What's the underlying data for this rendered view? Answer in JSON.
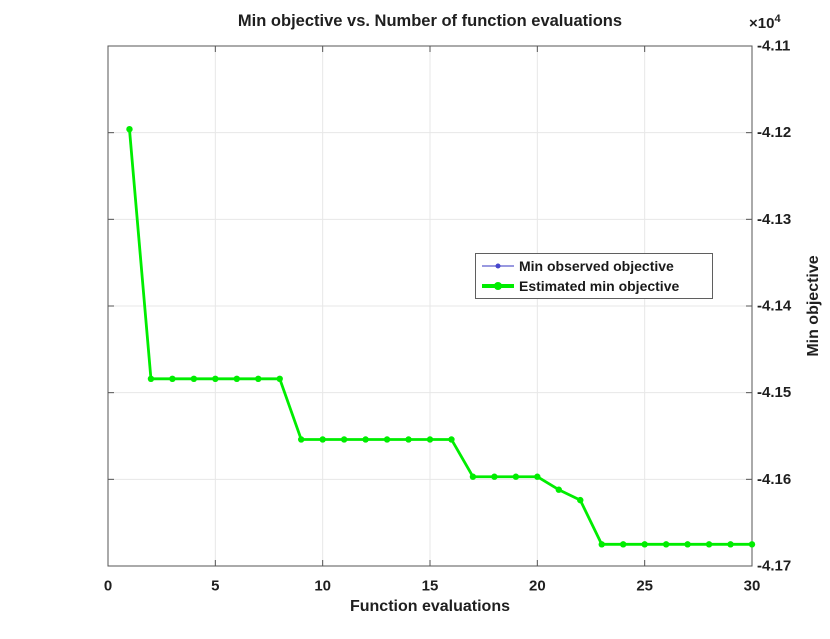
{
  "window": {
    "background_color": "#ffffff"
  },
  "chart_data": {
    "type": "line",
    "title": "Min objective vs. Number of function evaluations",
    "xlabel": "Function evaluations",
    "ylabel": "Min objective",
    "y_exponent": {
      "base": "×10",
      "power": "4"
    },
    "y_unit_scale": 10000,
    "xlim": [
      0,
      30
    ],
    "ylim_e4": [
      -4.17,
      -4.11
    ],
    "xticks": [
      0,
      5,
      10,
      15,
      20,
      25,
      30
    ],
    "yticks_e4": [
      -4.11,
      -4.12,
      -4.13,
      -4.14,
      -4.15,
      -4.16,
      -4.17
    ],
    "ytick_labels": [
      "-4.11",
      "-4.12",
      "-4.13",
      "-4.14",
      "-4.15",
      "-4.16",
      "-4.17"
    ],
    "grid": true,
    "y_axis_location": "right",
    "legend_position": "right-center",
    "x": [
      1,
      2,
      3,
      4,
      5,
      6,
      7,
      8,
      9,
      10,
      11,
      12,
      13,
      14,
      15,
      16,
      17,
      18,
      19,
      20,
      21,
      22,
      23,
      24,
      25,
      26,
      27,
      28,
      29,
      30
    ],
    "series": [
      {
        "name": "Min observed objective",
        "color": "#9999e0",
        "marker_color": "#4646cc",
        "line_width": 1.2,
        "marker_radius": 2,
        "values_e4": [
          -4.1196,
          -4.1484,
          -4.1484,
          -4.1484,
          -4.1484,
          -4.1484,
          -4.1484,
          -4.1484,
          -4.1554,
          -4.1554,
          -4.1554,
          -4.1554,
          -4.1554,
          -4.1554,
          -4.1554,
          -4.1554,
          -4.1597,
          -4.1597,
          -4.1597,
          -4.1597,
          -4.1612,
          -4.1624,
          -4.1675,
          -4.1675,
          -4.1675,
          -4.1675,
          -4.1675,
          -4.1675,
          -4.1675,
          -4.1675
        ]
      },
      {
        "name": "Estimated min objective",
        "color": "#00ed00",
        "marker_color": "#00ed00",
        "line_width": 2.8,
        "marker_radius": 3.2,
        "values_e4": [
          -4.1196,
          -4.1484,
          -4.1484,
          -4.1484,
          -4.1484,
          -4.1484,
          -4.1484,
          -4.1484,
          -4.1554,
          -4.1554,
          -4.1554,
          -4.1554,
          -4.1554,
          -4.1554,
          -4.1554,
          -4.1554,
          -4.1597,
          -4.1597,
          -4.1597,
          -4.1597,
          -4.1612,
          -4.1624,
          -4.1675,
          -4.1675,
          -4.1675,
          -4.1675,
          -4.1675,
          -4.1675,
          -4.1675,
          -4.1675
        ]
      }
    ],
    "colors": {
      "axis": "#555555",
      "grid": "#e7e7e7",
      "tick_text": "#1f1f1f"
    }
  }
}
